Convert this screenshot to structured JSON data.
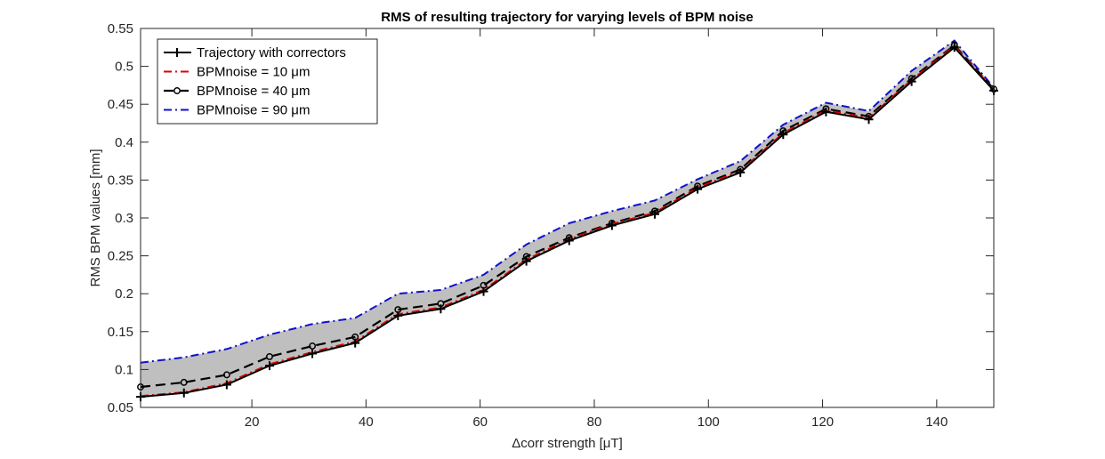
{
  "chart_data": {
    "type": "line",
    "title": "RMS of resulting trajectory for varying levels of BPM noise",
    "xlabel": "Δcorr strength [μT]",
    "ylabel": "RMS BPM values [mm]",
    "xlim": [
      0.5,
      150
    ],
    "ylim": [
      0.05,
      0.55
    ],
    "x_ticks": [
      20,
      40,
      60,
      80,
      100,
      120,
      140
    ],
    "y_ticks": [
      0.05,
      0.1,
      0.15,
      0.2,
      0.25,
      0.3,
      0.35,
      0.4,
      0.45,
      0.5,
      0.55
    ],
    "x_tick_labels": [
      "20",
      "40",
      "60",
      "80",
      "100",
      "120",
      "140"
    ],
    "y_tick_labels": [
      "0.05",
      "0.1",
      "0.15",
      "0.2",
      "0.25",
      "0.3",
      "0.35",
      "0.4",
      "0.45",
      "0.5",
      "0.55"
    ],
    "grid": false,
    "legend_position": "top-left",
    "x": [
      0.5,
      8.1,
      15.6,
      23.1,
      30.6,
      38.1,
      45.6,
      53.1,
      60.6,
      68.1,
      75.6,
      83.1,
      90.6,
      98.1,
      105.6,
      113.1,
      120.6,
      128.1,
      135.6,
      143.1,
      150.0
    ],
    "series": [
      {
        "name": "Trajectory with correctors",
        "color": "#000000",
        "style": "solid-plus",
        "values": [
          0.064,
          0.069,
          0.08,
          0.105,
          0.121,
          0.135,
          0.171,
          0.18,
          0.203,
          0.243,
          0.27,
          0.29,
          0.305,
          0.338,
          0.36,
          0.41,
          0.44,
          0.43,
          0.48,
          0.525,
          0.468
        ]
      },
      {
        "name": "BPMnoise = 10 μm",
        "color": "#dd0000",
        "style": "dashdot",
        "values": [
          0.065,
          0.07,
          0.082,
          0.107,
          0.123,
          0.137,
          0.173,
          0.182,
          0.205,
          0.245,
          0.272,
          0.292,
          0.307,
          0.34,
          0.362,
          0.412,
          0.442,
          0.432,
          0.482,
          0.527,
          0.469
        ]
      },
      {
        "name": "BPMnoise = 40 μm",
        "color": "#000000",
        "style": "dashed-circle",
        "values": [
          0.077,
          0.083,
          0.093,
          0.117,
          0.131,
          0.143,
          0.179,
          0.187,
          0.211,
          0.249,
          0.274,
          0.293,
          0.309,
          0.342,
          0.364,
          0.415,
          0.444,
          0.434,
          0.484,
          0.528,
          0.47
        ]
      },
      {
        "name": "BPMnoise = 90 μm",
        "color": "#1010cc",
        "style": "dashdot",
        "values": [
          0.109,
          0.116,
          0.127,
          0.146,
          0.16,
          0.168,
          0.2,
          0.205,
          0.225,
          0.265,
          0.293,
          0.309,
          0.323,
          0.351,
          0.375,
          0.423,
          0.452,
          0.441,
          0.494,
          0.534,
          0.472
        ]
      }
    ],
    "fill_band": {
      "between_series": [
        0,
        3
      ],
      "color": "#bfbfbf"
    }
  }
}
